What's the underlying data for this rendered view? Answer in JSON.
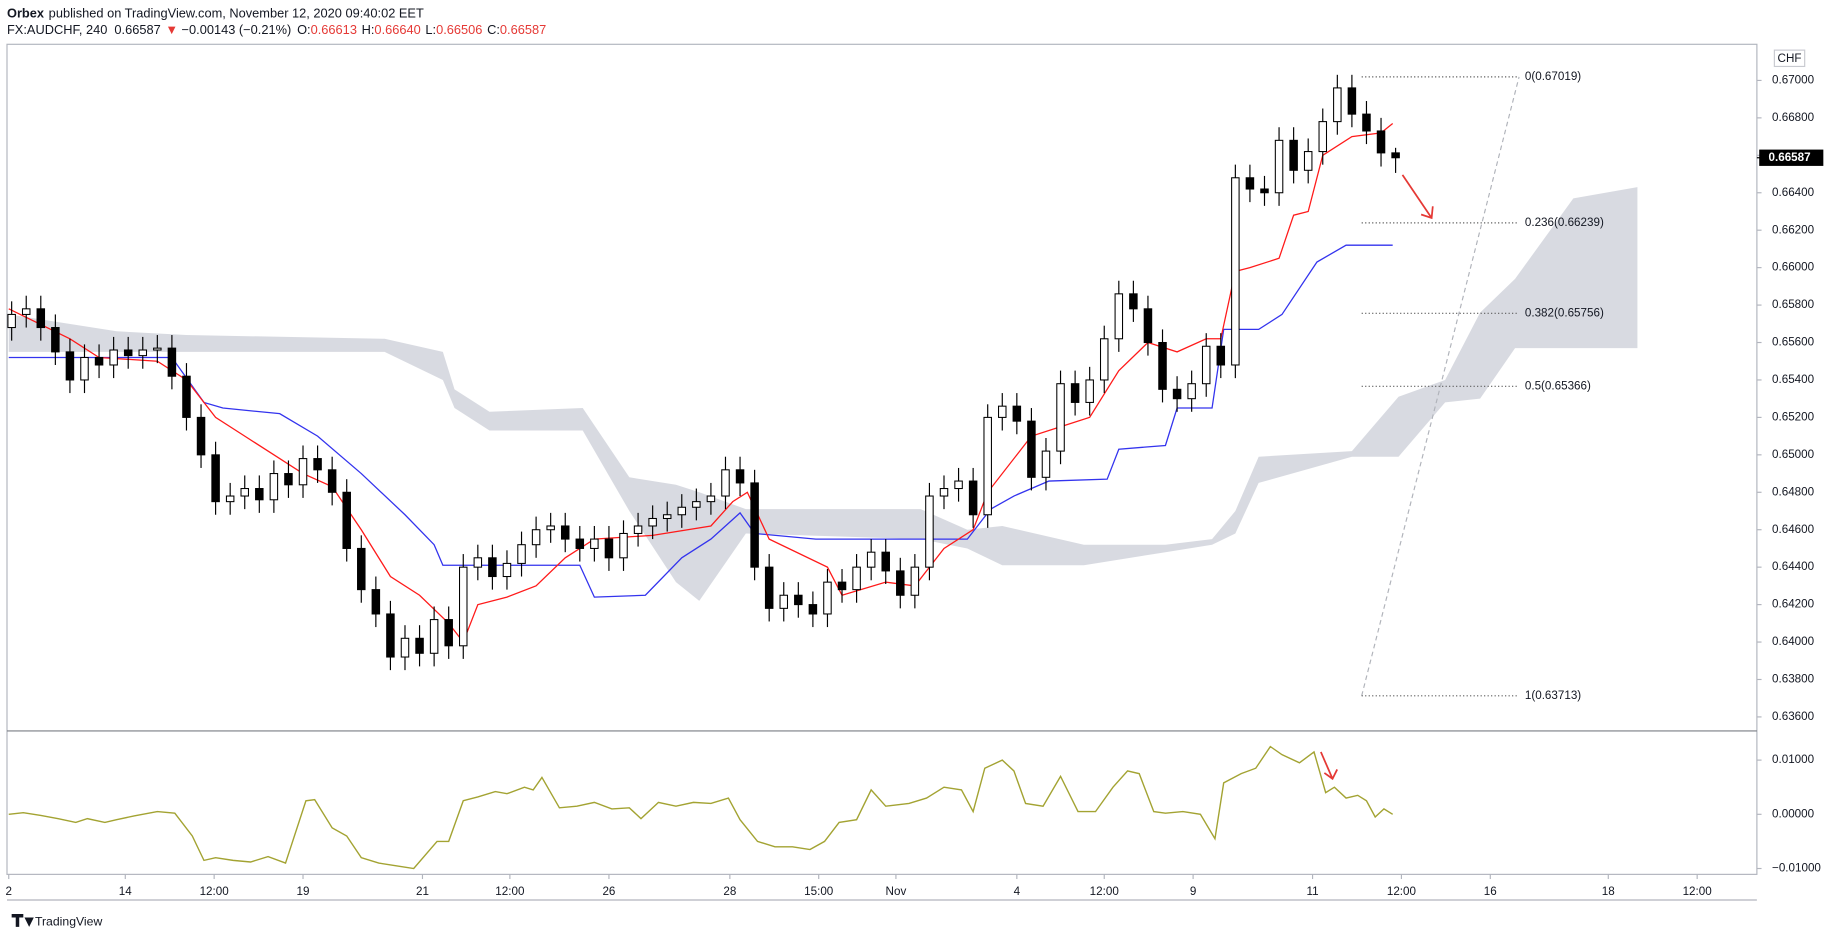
{
  "header": {
    "author": "Orbex",
    "published": "published on TradingView.com, November 12, 2020 09:40:02 EET",
    "symbol": "FX:AUDCHF, 240",
    "last": "0.66587",
    "change_arrow": "▼",
    "change": "−0.00143 (−0.21%)",
    "open_label": "O:",
    "open": "0.66613",
    "high_label": "H:",
    "high": "0.66640",
    "low_label": "L:",
    "low": "0.66506",
    "close_label": "C:",
    "close": "0.66587"
  },
  "footer": {
    "brand": "TradingView"
  },
  "chart_data": [
    {
      "type": "candlestick",
      "currency_label": "CHF",
      "up_color": "#ffffff",
      "down_color": "#000000",
      "wick_color": "#000000",
      "xlim": [
        -0.32,
        119.8
      ],
      "xticks": [
        {
          "value": -0.2,
          "label": "2"
        },
        {
          "value": 7.8,
          "label": "14"
        },
        {
          "value": 13.9,
          "label": "12:00"
        },
        {
          "value": 20,
          "label": "19"
        },
        {
          "value": 28.2,
          "label": "21"
        },
        {
          "value": 34.2,
          "label": "12:00"
        },
        {
          "value": 41,
          "label": "26"
        },
        {
          "value": 49.3,
          "label": "28"
        },
        {
          "value": 55.4,
          "label": "15:00"
        },
        {
          "value": 60.7,
          "label": "Nov"
        },
        {
          "value": 69,
          "label": "4"
        },
        {
          "value": 75,
          "label": "12:00"
        },
        {
          "value": 81.1,
          "label": "9"
        },
        {
          "value": 89.3,
          "label": "11"
        },
        {
          "value": 95.4,
          "label": "12:00"
        },
        {
          "value": 101.5,
          "label": "16"
        },
        {
          "value": 109.6,
          "label": "18"
        },
        {
          "value": 115.7,
          "label": "12:00"
        }
      ],
      "ylim": [
        0.63525,
        0.67193
      ],
      "yticks": [
        {
          "value": 0.636,
          "label": "0.63600"
        },
        {
          "value": 0.638,
          "label": "0.63800"
        },
        {
          "value": 0.64,
          "label": "0.64000"
        },
        {
          "value": 0.642,
          "label": "0.64200"
        },
        {
          "value": 0.644,
          "label": "0.64400"
        },
        {
          "value": 0.646,
          "label": "0.64600"
        },
        {
          "value": 0.648,
          "label": "0.64800"
        },
        {
          "value": 0.65,
          "label": "0.65000"
        },
        {
          "value": 0.652,
          "label": "0.65200"
        },
        {
          "value": 0.654,
          "label": "0.65400"
        },
        {
          "value": 0.656,
          "label": "0.65600"
        },
        {
          "value": 0.658,
          "label": "0.65800"
        },
        {
          "value": 0.66,
          "label": "0.66000"
        },
        {
          "value": 0.662,
          "label": "0.66200"
        },
        {
          "value": 0.664,
          "label": "0.66400"
        },
        {
          "value": 0.666,
          "label": "0.66600"
        },
        {
          "value": 0.668,
          "label": "0.66800"
        },
        {
          "value": 0.67,
          "label": "0.67000"
        }
      ],
      "open": [
        0.6568,
        0.6575,
        0.6578,
        0.6568,
        0.6555,
        0.654,
        0.6552,
        0.6548,
        0.6556,
        0.6553,
        0.6556,
        0.6557,
        0.6542,
        0.652,
        0.65,
        0.6475,
        0.6478,
        0.6482,
        0.6476,
        0.649,
        0.6484,
        0.6498,
        0.6492,
        0.648,
        0.645,
        0.6428,
        0.6415,
        0.6392,
        0.6402,
        0.6394,
        0.6412,
        0.6398,
        0.644,
        0.6445,
        0.6435,
        0.6442,
        0.6452,
        0.646,
        0.6462,
        0.6455,
        0.645,
        0.6455,
        0.6445,
        0.6458,
        0.6462,
        0.6466,
        0.6468,
        0.6472,
        0.6475,
        0.6478,
        0.6492,
        0.6485,
        0.644,
        0.6418,
        0.6425,
        0.642,
        0.6415,
        0.6432,
        0.6428,
        0.644,
        0.6448,
        0.6438,
        0.6425,
        0.644,
        0.6478,
        0.6482,
        0.6486,
        0.6468,
        0.652,
        0.6526,
        0.6518,
        0.6488,
        0.6502,
        0.6538,
        0.6528,
        0.654,
        0.6562,
        0.6586,
        0.6578,
        0.656,
        0.6535,
        0.653,
        0.6538,
        0.6558,
        0.6548,
        0.6648,
        0.6642,
        0.664,
        0.6668,
        0.6652,
        0.6662,
        0.6678,
        0.6696,
        0.6682,
        0.6673,
        0.66613
      ],
      "high": [
        0.6582,
        0.6585,
        0.6585,
        0.6575,
        0.6562,
        0.6559,
        0.6559,
        0.6563,
        0.6563,
        0.6563,
        0.6564,
        0.6564,
        0.6549,
        0.6527,
        0.6507,
        0.6485,
        0.6489,
        0.6489,
        0.6497,
        0.6497,
        0.6505,
        0.6505,
        0.6499,
        0.6487,
        0.6457,
        0.6435,
        0.6422,
        0.6409,
        0.6409,
        0.6419,
        0.6419,
        0.6447,
        0.6452,
        0.6452,
        0.6449,
        0.6459,
        0.6467,
        0.6469,
        0.6469,
        0.6462,
        0.6462,
        0.6462,
        0.6465,
        0.6469,
        0.6473,
        0.6475,
        0.6479,
        0.6482,
        0.6485,
        0.6499,
        0.6499,
        0.6492,
        0.6447,
        0.6432,
        0.6432,
        0.6427,
        0.6439,
        0.6439,
        0.6447,
        0.6455,
        0.6455,
        0.6445,
        0.6447,
        0.6485,
        0.6489,
        0.6493,
        0.6493,
        0.6527,
        0.6533,
        0.6533,
        0.6525,
        0.6509,
        0.6545,
        0.6545,
        0.6547,
        0.6569,
        0.6593,
        0.6593,
        0.6585,
        0.6567,
        0.6542,
        0.6545,
        0.6565,
        0.6565,
        0.6655,
        0.6655,
        0.6649,
        0.6675,
        0.6675,
        0.6669,
        0.6685,
        0.6703,
        0.6703,
        0.6689,
        0.668,
        0.6664
      ],
      "low": [
        0.6561,
        0.6568,
        0.6561,
        0.6548,
        0.6533,
        0.6533,
        0.6541,
        0.6541,
        0.6546,
        0.6546,
        0.6549,
        0.6535,
        0.6513,
        0.6493,
        0.6468,
        0.6468,
        0.6471,
        0.6469,
        0.6469,
        0.6477,
        0.6477,
        0.6485,
        0.6473,
        0.6443,
        0.6421,
        0.6408,
        0.6385,
        0.6385,
        0.6387,
        0.6387,
        0.6391,
        0.6391,
        0.6433,
        0.6428,
        0.6428,
        0.6435,
        0.6445,
        0.6453,
        0.6448,
        0.6443,
        0.6443,
        0.6438,
        0.6438,
        0.6451,
        0.6455,
        0.6459,
        0.6461,
        0.6465,
        0.6468,
        0.6471,
        0.6478,
        0.6433,
        0.6411,
        0.6411,
        0.6413,
        0.6408,
        0.6408,
        0.6421,
        0.6421,
        0.6433,
        0.6431,
        0.6418,
        0.6418,
        0.6433,
        0.6471,
        0.6475,
        0.6461,
        0.6461,
        0.6513,
        0.6511,
        0.6481,
        0.6481,
        0.6495,
        0.6521,
        0.6521,
        0.6533,
        0.6555,
        0.6571,
        0.6553,
        0.6528,
        0.6523,
        0.6523,
        0.6531,
        0.6541,
        0.6541,
        0.6635,
        0.6633,
        0.6633,
        0.6645,
        0.6645,
        0.6655,
        0.6671,
        0.6675,
        0.6666,
        0.6654,
        0.66506
      ],
      "close": [
        0.6575,
        0.6578,
        0.6568,
        0.6555,
        0.654,
        0.6552,
        0.6548,
        0.6556,
        0.6553,
        0.6556,
        0.6557,
        0.6542,
        0.652,
        0.65,
        0.6475,
        0.6478,
        0.6482,
        0.6476,
        0.649,
        0.6484,
        0.6498,
        0.6492,
        0.648,
        0.645,
        0.6428,
        0.6415,
        0.6392,
        0.6402,
        0.6394,
        0.6412,
        0.6398,
        0.644,
        0.6445,
        0.6435,
        0.6442,
        0.6452,
        0.646,
        0.6462,
        0.6455,
        0.645,
        0.6455,
        0.6445,
        0.6458,
        0.6462,
        0.6466,
        0.6468,
        0.6472,
        0.6475,
        0.6478,
        0.6492,
        0.6485,
        0.644,
        0.6418,
        0.6425,
        0.642,
        0.6415,
        0.6432,
        0.6428,
        0.644,
        0.6448,
        0.6438,
        0.6425,
        0.644,
        0.6478,
        0.6482,
        0.6486,
        0.6468,
        0.652,
        0.6526,
        0.6518,
        0.6488,
        0.6502,
        0.6538,
        0.6528,
        0.654,
        0.6562,
        0.6586,
        0.6578,
        0.656,
        0.6535,
        0.653,
        0.6538,
        0.6558,
        0.6548,
        0.6648,
        0.6642,
        0.664,
        0.6668,
        0.6652,
        0.6662,
        0.6678,
        0.6696,
        0.6682,
        0.6673,
        0.66613,
        0.66587
      ],
      "tenkan": {
        "color": "#ff1a1a",
        "x": [
          -0.2,
          4,
          6,
          10,
          12,
          14,
          16,
          18,
          20,
          22,
          24,
          26,
          28,
          30,
          31,
          32,
          34,
          36,
          38,
          40,
          44,
          48,
          49.5,
          50.5,
          52,
          56,
          57,
          60,
          62,
          64,
          66,
          67,
          69,
          70,
          72,
          74,
          76,
          78,
          80,
          82,
          83,
          84,
          85,
          87,
          88,
          89,
          90,
          92,
          94,
          94.8
        ],
        "values": [
          0.6578,
          0.6562,
          0.6552,
          0.655,
          0.654,
          0.652,
          0.651,
          0.65,
          0.649,
          0.6483,
          0.646,
          0.6435,
          0.6425,
          0.641,
          0.64,
          0.642,
          0.6424,
          0.643,
          0.6445,
          0.6455,
          0.6457,
          0.6462,
          0.6475,
          0.648,
          0.6455,
          0.644,
          0.6425,
          0.6432,
          0.643,
          0.645,
          0.646,
          0.648,
          0.65,
          0.651,
          0.6515,
          0.652,
          0.6545,
          0.656,
          0.6555,
          0.6562,
          0.6562,
          0.6598,
          0.66,
          0.6605,
          0.6628,
          0.663,
          0.666,
          0.667,
          0.6672,
          0.6677
        ]
      },
      "kijun": {
        "color": "#3333ee",
        "x": [
          -0.2,
          11,
          13.2,
          14.5,
          18.4,
          21,
          24,
          27,
          29,
          29.6,
          39,
          40,
          43.5,
          46,
          48,
          50,
          51,
          55.2,
          65.6,
          67.2,
          68.8,
          71.2,
          75.2,
          76,
          79.2,
          80,
          82.4,
          83.2,
          85.6,
          87.2,
          89.6,
          91.6,
          94.8
        ],
        "values": [
          0.6552,
          0.6552,
          0.6528,
          0.6525,
          0.6522,
          0.651,
          0.649,
          0.6468,
          0.6452,
          0.6441,
          0.6441,
          0.6424,
          0.6425,
          0.6445,
          0.6455,
          0.6469,
          0.6458,
          0.6455,
          0.6455,
          0.6471,
          0.6478,
          0.6486,
          0.6487,
          0.6503,
          0.6505,
          0.6525,
          0.6525,
          0.6567,
          0.6567,
          0.6575,
          0.6603,
          0.6612,
          0.6612
        ]
      },
      "cloud": {
        "color": "#d1d4dc",
        "x": [
          -0.2,
          7.2,
          12,
          25.6,
          29.6,
          30.4,
          32.8,
          39.2,
          42.4,
          45.6,
          47.2,
          50.4,
          62.4,
          65.6,
          68,
          73.6,
          79.2,
          82.4,
          84,
          85.6,
          92,
          95.2,
          98.4,
          100.8,
          103.2,
          107.2,
          111.6
        ],
        "upper": [
          0.6575,
          0.6566,
          0.6564,
          0.6562,
          0.6555,
          0.6535,
          0.6523,
          0.6525,
          0.6488,
          0.6484,
          0.648,
          0.6471,
          0.6471,
          0.646,
          0.6462,
          0.6452,
          0.6452,
          0.6455,
          0.647,
          0.6499,
          0.6502,
          0.6531,
          0.654,
          0.6576,
          0.6594,
          0.6637,
          0.6643
        ],
        "lower": [
          0.6555,
          0.6555,
          0.6555,
          0.6555,
          0.654,
          0.6525,
          0.6513,
          0.6513,
          0.647,
          0.6432,
          0.6422,
          0.6458,
          0.6455,
          0.645,
          0.6441,
          0.6441,
          0.6448,
          0.6452,
          0.6458,
          0.6485,
          0.6499,
          0.6499,
          0.6528,
          0.653,
          0.6557,
          0.6557,
          0.6557
        ]
      },
      "fib_levels": [
        {
          "label": "0(0.67019)",
          "value": 0.67019
        },
        {
          "label": "0.236(0.66239)",
          "value": 0.66239
        },
        {
          "label": "0.382(0.65756)",
          "value": 0.65756
        },
        {
          "label": "0.5(0.65366)",
          "value": 0.65366
        },
        {
          "label": "1(0.63713)",
          "value": 0.63713
        }
      ]
    },
    {
      "type": "line",
      "color": "#a3a332",
      "ylim": [
        -0.01108,
        0.01516
      ],
      "yticks": [
        {
          "value": -0.01,
          "label": "−0.01000"
        },
        {
          "value": 0,
          "label": "0.00000"
        },
        {
          "value": 0.01,
          "label": "0.01000"
        }
      ],
      "x": [
        -0.2,
        0.8,
        2,
        3.2,
        4.4,
        5.2,
        6.4,
        7.2,
        8.4,
        10,
        11.2,
        12.4,
        13.2,
        14,
        15.2,
        16.4,
        17.6,
        18.8,
        20.2,
        20.8,
        22,
        23,
        24,
        25.2,
        26.4,
        27.6,
        29.2,
        30,
        31,
        32,
        33.2,
        34,
        35.2,
        35.8,
        36.4,
        37.6,
        38.8,
        40,
        41.2,
        42.4,
        43.2,
        44.4,
        45.6,
        46.8,
        48,
        49.2,
        50,
        51.2,
        52.4,
        53.6,
        54.8,
        55.8,
        56.8,
        58,
        59,
        60,
        61.6,
        62.8,
        64,
        65.2,
        66,
        66.8,
        68,
        68.8,
        69.6,
        70.8,
        72,
        73.2,
        74.4,
        75.6,
        76.6,
        77.4,
        78.4,
        79.2,
        80.4,
        81.6,
        82.6,
        83.2,
        84.4,
        85.4,
        86.4,
        87.2,
        88.4,
        89.4,
        90.2,
        90.8,
        91.6,
        92.4,
        93,
        93.6,
        94.2,
        94.8
      ],
      "values": [
        0,
        0.0003,
        -0.0002,
        -0.0008,
        -0.0015,
        -0.0008,
        -0.0015,
        -0.001,
        -0.0003,
        0.0005,
        0.0002,
        -0.004,
        -0.0085,
        -0.008,
        -0.0085,
        -0.0088,
        -0.0078,
        -0.009,
        0.0025,
        0.0027,
        -0.0025,
        -0.004,
        -0.008,
        -0.009,
        -0.0095,
        -0.01,
        -0.005,
        -0.005,
        0.0025,
        0.0032,
        0.0042,
        0.0038,
        0.005,
        0.0045,
        0.0068,
        0.0012,
        0.0015,
        0.0022,
        0.001,
        0.0012,
        -0.0008,
        0.0022,
        0.0015,
        0.0022,
        0.002,
        0.003,
        -0.001,
        -0.005,
        -0.006,
        -0.006,
        -0.0065,
        -0.005,
        -0.0015,
        -0.001,
        0.0045,
        0.0015,
        0.002,
        0.003,
        0.005,
        0.0045,
        0.0005,
        0.0085,
        0.01,
        0.008,
        0.002,
        0.0015,
        0.007,
        0.0005,
        0.0005,
        0.005,
        0.008,
        0.0075,
        0.0005,
        0.0002,
        0.0005,
        0,
        -0.0045,
        0.0058,
        0.0075,
        0.0085,
        0.0125,
        0.011,
        0.0095,
        0.0115,
        0.004,
        0.005,
        0.003,
        0.0035,
        0.0025,
        -0.0005,
        0.001,
        0
      ]
    }
  ]
}
